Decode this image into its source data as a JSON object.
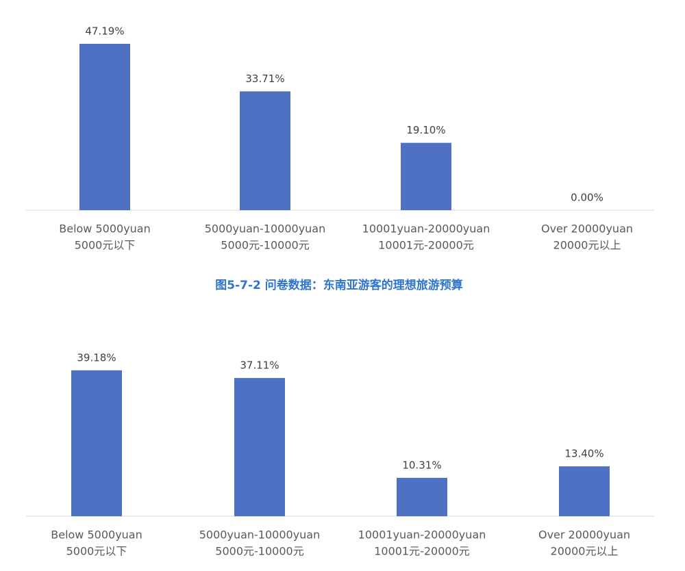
{
  "chart_data": [
    {
      "type": "bar",
      "categories": [
        [
          "Below 5000yuan",
          "5000元以下"
        ],
        [
          "5000yuan-10000yuan",
          "5000元-10000元"
        ],
        [
          "10001yuan-20000yuan",
          "10001元-20000元"
        ],
        [
          "Over 20000yuan",
          "20000元以上"
        ]
      ],
      "values": [
        47.19,
        33.71,
        19.1,
        0.0
      ],
      "value_labels": [
        "47.19%",
        "33.71%",
        "19.10%",
        "0.00%"
      ],
      "color": "#4e71c3",
      "caption": "图5-7-2 问卷数据：东南亚游客的理想旅游预算"
    },
    {
      "type": "bar",
      "categories": [
        [
          "Below 5000yuan",
          "5000元以下"
        ],
        [
          "5000yuan-10000yuan",
          "5000元-10000元"
        ],
        [
          "10001yuan-20000yuan",
          "10001元-20000元"
        ],
        [
          "Over 20000yuan",
          "20000元以上"
        ]
      ],
      "values": [
        39.18,
        37.11,
        10.31,
        13.4
      ],
      "value_labels": [
        "39.18%",
        "37.11%",
        "10.31%",
        "13.40%"
      ],
      "color": "#4e71c3"
    }
  ]
}
